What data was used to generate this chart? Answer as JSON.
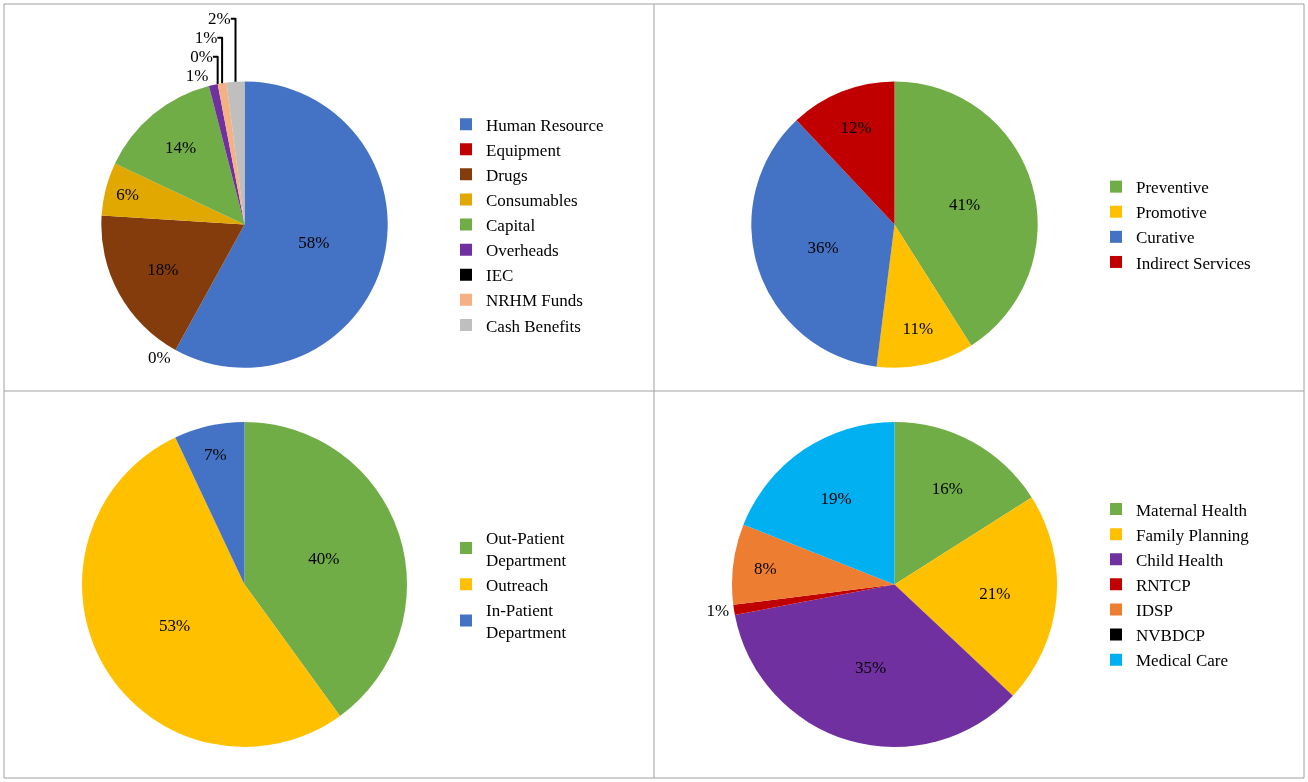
{
  "chart_data": [
    {
      "type": "pie",
      "legend": "right",
      "categories": [
        "Human Resource",
        "Equipment",
        "Drugs",
        "Consumables",
        "Capital",
        "Overheads",
        "IEC",
        "NRHM Funds",
        "Cash Benefits"
      ],
      "values": [
        58,
        0,
        18,
        6,
        14,
        1,
        0,
        1,
        2
      ],
      "value_labels": [
        "58%",
        "0%",
        "18%",
        "6%",
        "14%",
        "1%",
        "0%",
        "1%",
        "2%"
      ],
      "colors": [
        "#4472c4",
        "#c00000",
        "#843c0c",
        "#e0a800",
        "#70ad47",
        "#7030a0",
        "#000000",
        "#f4b183",
        "#bfbfbf"
      ]
    },
    {
      "type": "pie",
      "legend": "right",
      "categories": [
        "Preventive",
        "Promotive",
        "Curative",
        "Indirect Services"
      ],
      "values": [
        41,
        11,
        36,
        12
      ],
      "value_labels": [
        "41%",
        "11%",
        "36%",
        "12%"
      ],
      "colors": [
        "#70ad47",
        "#ffc000",
        "#4472c4",
        "#c00000"
      ]
    },
    {
      "type": "pie",
      "legend": "right",
      "categories": [
        "Out-Patient Department",
        "Outreach",
        "In-Patient Department"
      ],
      "values": [
        40,
        53,
        7
      ],
      "value_labels": [
        "40%",
        "53%",
        "7%"
      ],
      "colors": [
        "#70ad47",
        "#ffc000",
        "#4472c4"
      ]
    },
    {
      "type": "pie",
      "legend": "right",
      "categories": [
        "Maternal Health",
        "Family Planning",
        "Child Health",
        "RNTCP",
        "IDSP",
        "NVBDCP",
        "Medical Care"
      ],
      "values": [
        16,
        21,
        35,
        1,
        8,
        0,
        19
      ],
      "value_labels": [
        "16%",
        "21%",
        "35%",
        "1%",
        "8%",
        null,
        "19%"
      ],
      "colors": [
        "#70ad47",
        "#ffc000",
        "#7030a0",
        "#c00000",
        "#ed7d31",
        "#000000",
        "#00b0f0"
      ]
    }
  ]
}
